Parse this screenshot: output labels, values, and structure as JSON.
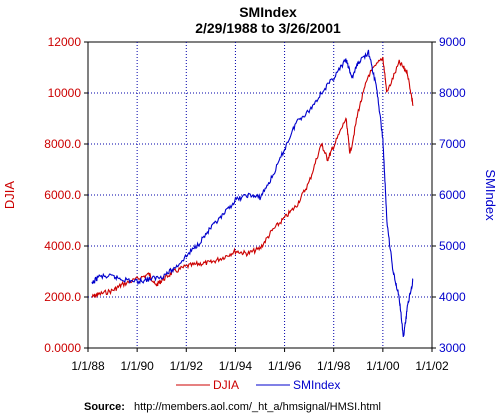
{
  "chart_data": {
    "type": "line",
    "title": "SMIndex",
    "subtitle": "2/29/1988 to 3/26/2001",
    "xlabel": "",
    "ylabel_left": "DJIA",
    "ylabel_right": "SMIndex",
    "x_ticks": [
      "1/1/88",
      "1/1/90",
      "1/1/92",
      "1/1/94",
      "1/1/96",
      "1/1/98",
      "1/1/00",
      "1/1/02"
    ],
    "x_range_years": [
      1988,
      2002
    ],
    "y_left": {
      "range": [
        0,
        12000
      ],
      "ticks": [
        0,
        2000,
        4000,
        6000,
        8000,
        10000,
        12000
      ],
      "tick_labels": [
        "0.0000",
        "2000.0",
        "4000.0",
        "6000.0",
        "8000.0",
        "10000",
        "12000"
      ],
      "color": "#cc0000"
    },
    "y_right": {
      "range": [
        3000,
        9000
      ],
      "ticks": [
        3000,
        4000,
        5000,
        6000,
        7000,
        8000,
        9000
      ],
      "tick_labels": [
        "3000",
        "4000",
        "5000",
        "6000",
        "7000",
        "8000",
        "9000"
      ],
      "color": "#0000cc"
    },
    "grid": true,
    "series": [
      {
        "name": "DJIA",
        "axis": "left",
        "color": "#cc0000",
        "x": [
          "1988-02-29",
          "1988-06-01",
          "1989-01-01",
          "1989-06-01",
          "1990-01-01",
          "1990-07-01",
          "1990-10-01",
          "1991-01-01",
          "1991-06-01",
          "1992-01-01",
          "1992-07-01",
          "1993-01-01",
          "1993-07-01",
          "1994-01-01",
          "1994-07-01",
          "1995-01-01",
          "1995-07-01",
          "1996-01-01",
          "1996-07-01",
          "1997-01-01",
          "1997-07-01",
          "1997-10-01",
          "1998-01-01",
          "1998-07-01",
          "1998-09-01",
          "1999-01-01",
          "1999-06-01",
          "2000-01-01",
          "2000-03-01",
          "2000-09-01",
          "2001-01-01",
          "2001-03-26"
        ],
        "values": [
          2000,
          2100,
          2250,
          2500,
          2700,
          2900,
          2450,
          2650,
          2950,
          3200,
          3300,
          3350,
          3550,
          3800,
          3700,
          3900,
          4600,
          5100,
          5600,
          6500,
          8000,
          7400,
          7900,
          9000,
          7600,
          9300,
          10700,
          11400,
          10000,
          11200,
          10800,
          9500
        ]
      },
      {
        "name": "SMIndex",
        "axis": "right",
        "color": "#0000cc",
        "x": [
          "1988-02-29",
          "1988-06-01",
          "1989-01-01",
          "1989-06-01",
          "1990-01-01",
          "1990-07-01",
          "1991-01-01",
          "1991-07-01",
          "1992-01-01",
          "1992-07-01",
          "1993-01-01",
          "1993-07-01",
          "1994-01-01",
          "1994-07-01",
          "1995-01-01",
          "1995-07-01",
          "1996-01-01",
          "1996-07-01",
          "1997-01-01",
          "1997-07-01",
          "1998-01-01",
          "1998-07-01",
          "1998-10-01",
          "1999-01-01",
          "1999-06-01",
          "1999-10-01",
          "2000-01-01",
          "2000-03-01",
          "2000-06-01",
          "2000-09-01",
          "2000-11-01",
          "2001-01-01",
          "2001-03-26"
        ],
        "values": [
          4250,
          4400,
          4400,
          4350,
          4300,
          4350,
          4400,
          4550,
          4800,
          5050,
          5350,
          5600,
          5900,
          6000,
          5950,
          6350,
          6900,
          7450,
          7650,
          8000,
          8300,
          8650,
          8300,
          8600,
          8800,
          8100,
          7100,
          5500,
          4500,
          4000,
          3200,
          3800,
          4350
        ]
      }
    ],
    "legend": {
      "placement": "bottom-center",
      "entries": [
        "DJIA",
        "SMIndex"
      ]
    },
    "source_label": "Source:",
    "source_text": "http://members.aol.com/_ht_a/hmsignal/HMSI.html"
  }
}
